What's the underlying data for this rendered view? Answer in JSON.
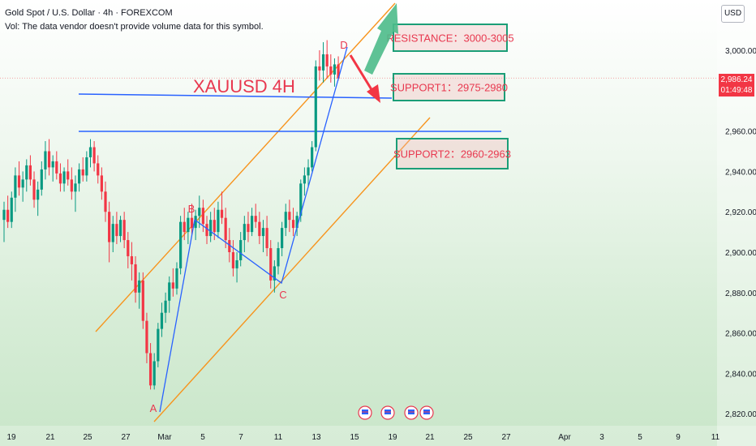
{
  "header": {
    "symbol_line": "Gold Spot / U.S. Dollar · 4h · FOREXCOM",
    "vol_line": "Vol: The data vendor doesn't provide volume data for this symbol."
  },
  "currency_button": "USD",
  "price_badge": {
    "price": "2,986.24",
    "countdown": "01:49:48",
    "color": "#f23645"
  },
  "chart_data": {
    "type": "candlestick",
    "title": "XAUUSD 4H",
    "ylim": [
      2815,
      3025
    ],
    "yticks": [
      2820,
      2840,
      2860,
      2880,
      2900,
      2920,
      2940,
      2960,
      2980,
      3000
    ],
    "ytick_labels": [
      "2,820.00",
      "2,840.00",
      "2,860.00",
      "2,880.00",
      "2,900.00",
      "2,920.00",
      "2,940.00",
      "2,960.00",
      "",
      "3,000.00"
    ],
    "xticks": [
      "19",
      "21",
      "25",
      "27",
      "Mar",
      "5",
      "7",
      "11",
      "13",
      "15",
      "19",
      "21",
      "25",
      "27",
      "Apr",
      "3",
      "5",
      "9",
      "11"
    ],
    "current_price": 2986.24,
    "colors": {
      "up": "#089981",
      "down": "#f23645",
      "channel": "#f7941d",
      "level": "#2962ff",
      "zone_border": "#1b9e77",
      "zone_fill": "#f2b8b8",
      "zone_text": "#e8384f",
      "arrow_up": "#4cbb8a",
      "arrow_down": "#f23645"
    },
    "candles": [
      {
        "o": 2916,
        "h": 2925,
        "l": 2905,
        "c": 2921
      },
      {
        "o": 2921,
        "h": 2928,
        "l": 2912,
        "c": 2915
      },
      {
        "o": 2915,
        "h": 2930,
        "l": 2912,
        "c": 2927
      },
      {
        "o": 2927,
        "h": 2942,
        "l": 2920,
        "c": 2938
      },
      {
        "o": 2938,
        "h": 2945,
        "l": 2928,
        "c": 2932
      },
      {
        "o": 2932,
        "h": 2940,
        "l": 2925,
        "c": 2936
      },
      {
        "o": 2936,
        "h": 2946,
        "l": 2930,
        "c": 2943
      },
      {
        "o": 2943,
        "h": 2948,
        "l": 2933,
        "c": 2936
      },
      {
        "o": 2936,
        "h": 2940,
        "l": 2922,
        "c": 2926
      },
      {
        "o": 2926,
        "h": 2935,
        "l": 2918,
        "c": 2931
      },
      {
        "o": 2931,
        "h": 2945,
        "l": 2928,
        "c": 2941
      },
      {
        "o": 2941,
        "h": 2955,
        "l": 2936,
        "c": 2950
      },
      {
        "o": 2950,
        "h": 2956,
        "l": 2938,
        "c": 2942
      },
      {
        "o": 2942,
        "h": 2948,
        "l": 2935,
        "c": 2945
      },
      {
        "o": 2945,
        "h": 2950,
        "l": 2936,
        "c": 2939
      },
      {
        "o": 2939,
        "h": 2944,
        "l": 2930,
        "c": 2934
      },
      {
        "o": 2934,
        "h": 2942,
        "l": 2930,
        "c": 2940
      },
      {
        "o": 2940,
        "h": 2946,
        "l": 2933,
        "c": 2936
      },
      {
        "o": 2936,
        "h": 2942,
        "l": 2926,
        "c": 2930
      },
      {
        "o": 2930,
        "h": 2938,
        "l": 2920,
        "c": 2934
      },
      {
        "o": 2934,
        "h": 2944,
        "l": 2930,
        "c": 2941
      },
      {
        "o": 2941,
        "h": 2947,
        "l": 2935,
        "c": 2938
      },
      {
        "o": 2938,
        "h": 2950,
        "l": 2935,
        "c": 2947
      },
      {
        "o": 2947,
        "h": 2956,
        "l": 2942,
        "c": 2952
      },
      {
        "o": 2952,
        "h": 2955,
        "l": 2940,
        "c": 2944
      },
      {
        "o": 2944,
        "h": 2948,
        "l": 2934,
        "c": 2938
      },
      {
        "o": 2938,
        "h": 2942,
        "l": 2926,
        "c": 2930
      },
      {
        "o": 2930,
        "h": 2935,
        "l": 2915,
        "c": 2920
      },
      {
        "o": 2920,
        "h": 2925,
        "l": 2895,
        "c": 2905
      },
      {
        "o": 2905,
        "h": 2918,
        "l": 2900,
        "c": 2914
      },
      {
        "o": 2914,
        "h": 2920,
        "l": 2904,
        "c": 2908
      },
      {
        "o": 2908,
        "h": 2918,
        "l": 2905,
        "c": 2916
      },
      {
        "o": 2916,
        "h": 2920,
        "l": 2902,
        "c": 2906
      },
      {
        "o": 2906,
        "h": 2910,
        "l": 2892,
        "c": 2898
      },
      {
        "o": 2898,
        "h": 2905,
        "l": 2886,
        "c": 2894
      },
      {
        "o": 2894,
        "h": 2898,
        "l": 2875,
        "c": 2880
      },
      {
        "o": 2880,
        "h": 2890,
        "l": 2872,
        "c": 2886
      },
      {
        "o": 2886,
        "h": 2890,
        "l": 2862,
        "c": 2866
      },
      {
        "o": 2866,
        "h": 2870,
        "l": 2845,
        "c": 2850
      },
      {
        "o": 2850,
        "h": 2855,
        "l": 2832,
        "c": 2834
      },
      {
        "o": 2834,
        "h": 2850,
        "l": 2832,
        "c": 2846
      },
      {
        "o": 2846,
        "h": 2865,
        "l": 2843,
        "c": 2862
      },
      {
        "o": 2862,
        "h": 2875,
        "l": 2858,
        "c": 2870
      },
      {
        "o": 2870,
        "h": 2880,
        "l": 2865,
        "c": 2876
      },
      {
        "o": 2876,
        "h": 2888,
        "l": 2870,
        "c": 2885
      },
      {
        "o": 2885,
        "h": 2892,
        "l": 2878,
        "c": 2882
      },
      {
        "o": 2882,
        "h": 2895,
        "l": 2879,
        "c": 2892
      },
      {
        "o": 2892,
        "h": 2918,
        "l": 2889,
        "c": 2915
      },
      {
        "o": 2915,
        "h": 2922,
        "l": 2906,
        "c": 2910
      },
      {
        "o": 2910,
        "h": 2920,
        "l": 2904,
        "c": 2917
      },
      {
        "o": 2917,
        "h": 2924,
        "l": 2908,
        "c": 2912
      },
      {
        "o": 2912,
        "h": 2921,
        "l": 2906,
        "c": 2918
      },
      {
        "o": 2918,
        "h": 2928,
        "l": 2912,
        "c": 2922
      },
      {
        "o": 2922,
        "h": 2926,
        "l": 2910,
        "c": 2914
      },
      {
        "o": 2914,
        "h": 2918,
        "l": 2904,
        "c": 2908
      },
      {
        "o": 2908,
        "h": 2920,
        "l": 2905,
        "c": 2916
      },
      {
        "o": 2916,
        "h": 2922,
        "l": 2906,
        "c": 2910
      },
      {
        "o": 2910,
        "h": 2925,
        "l": 2907,
        "c": 2921
      },
      {
        "o": 2921,
        "h": 2930,
        "l": 2914,
        "c": 2917
      },
      {
        "o": 2917,
        "h": 2922,
        "l": 2902,
        "c": 2906
      },
      {
        "o": 2906,
        "h": 2912,
        "l": 2895,
        "c": 2900
      },
      {
        "o": 2900,
        "h": 2906,
        "l": 2888,
        "c": 2892
      },
      {
        "o": 2892,
        "h": 2900,
        "l": 2885,
        "c": 2896
      },
      {
        "o": 2896,
        "h": 2910,
        "l": 2893,
        "c": 2906
      },
      {
        "o": 2906,
        "h": 2918,
        "l": 2900,
        "c": 2914
      },
      {
        "o": 2914,
        "h": 2920,
        "l": 2905,
        "c": 2910
      },
      {
        "o": 2910,
        "h": 2922,
        "l": 2908,
        "c": 2918
      },
      {
        "o": 2918,
        "h": 2924,
        "l": 2912,
        "c": 2915
      },
      {
        "o": 2915,
        "h": 2920,
        "l": 2904,
        "c": 2908
      },
      {
        "o": 2908,
        "h": 2916,
        "l": 2900,
        "c": 2912
      },
      {
        "o": 2912,
        "h": 2918,
        "l": 2898,
        "c": 2902
      },
      {
        "o": 2902,
        "h": 2906,
        "l": 2882,
        "c": 2886
      },
      {
        "o": 2886,
        "h": 2896,
        "l": 2880,
        "c": 2893
      },
      {
        "o": 2893,
        "h": 2905,
        "l": 2889,
        "c": 2902
      },
      {
        "o": 2902,
        "h": 2915,
        "l": 2898,
        "c": 2912
      },
      {
        "o": 2912,
        "h": 2924,
        "l": 2908,
        "c": 2920
      },
      {
        "o": 2920,
        "h": 2926,
        "l": 2910,
        "c": 2916
      },
      {
        "o": 2916,
        "h": 2922,
        "l": 2908,
        "c": 2912
      },
      {
        "o": 2912,
        "h": 2920,
        "l": 2908,
        "c": 2918
      },
      {
        "o": 2918,
        "h": 2936,
        "l": 2915,
        "c": 2934
      },
      {
        "o": 2934,
        "h": 2942,
        "l": 2928,
        "c": 2938
      },
      {
        "o": 2938,
        "h": 2946,
        "l": 2932,
        "c": 2942
      },
      {
        "o": 2942,
        "h": 2955,
        "l": 2940,
        "c": 2952
      },
      {
        "o": 2952,
        "h": 2995,
        "l": 2950,
        "c": 2992
      },
      {
        "o": 2992,
        "h": 3000,
        "l": 2985,
        "c": 2990
      },
      {
        "o": 2990,
        "h": 3004,
        "l": 2984,
        "c": 2998
      },
      {
        "o": 2998,
        "h": 3005,
        "l": 2986,
        "c": 2992
      },
      {
        "o": 2992,
        "h": 2998,
        "l": 2984,
        "c": 2988
      },
      {
        "o": 2988,
        "h": 2996,
        "l": 2982,
        "c": 2993
      },
      {
        "o": 2993,
        "h": 2997,
        "l": 2985,
        "c": 2986
      }
    ],
    "annotations": {
      "title": "XAUUSD 4H",
      "points": [
        {
          "label": "A"
        },
        {
          "label": "B"
        },
        {
          "label": "C"
        },
        {
          "label": "D"
        }
      ],
      "zones": [
        {
          "name": "resistance",
          "text": "RESISTANCE：3000-3005"
        },
        {
          "name": "support1",
          "text": "SUPPORT1：2975-2980"
        },
        {
          "name": "support2",
          "text": "SUPPORT2：2960-2963"
        }
      ]
    }
  }
}
